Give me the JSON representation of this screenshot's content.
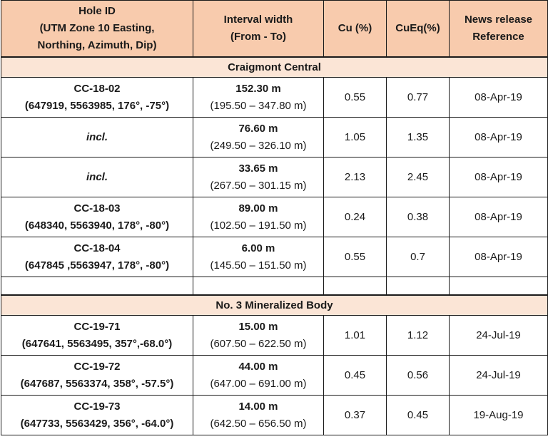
{
  "header": {
    "hole_id": [
      "Hole ID",
      "(UTM Zone 10 Easting,",
      "Northing, Azimuth, Dip)"
    ],
    "interval": [
      "Interval width",
      "(From - To)"
    ],
    "cu": "Cu (%)",
    "cueq": "CuEq(%)",
    "news": [
      "News release",
      "Reference"
    ]
  },
  "sections": [
    {
      "title": "Craigmont Central",
      "rows": [
        {
          "hole": "CC-18-02",
          "coords": "(647919, 5563985, 176°, -75°)",
          "width": "152.30 m",
          "range": "(195.50 – 347.80 m)",
          "cu": "0.55",
          "cueq": "0.77",
          "ref": "08-Apr-19"
        },
        {
          "hole": "incl.",
          "coords": "",
          "width": "76.60 m",
          "range": "(249.50 – 326.10 m)",
          "cu": "1.05",
          "cueq": "1.35",
          "ref": "08-Apr-19"
        },
        {
          "hole": "incl.",
          "coords": "",
          "width": "33.65 m",
          "range": "(267.50 – 301.15 m)",
          "cu": "2.13",
          "cueq": "2.45",
          "ref": "08-Apr-19"
        },
        {
          "hole": "CC-18-03",
          "coords": "(648340, 5563940, 178°, -80°)",
          "width": "89.00 m",
          "range": "(102.50 – 191.50 m)",
          "cu": "0.24",
          "cueq": "0.38",
          "ref": "08-Apr-19"
        },
        {
          "hole": "CC-18-04",
          "coords": "(647845 ,5563947, 178°, -80°)",
          "width": "6.00 m",
          "range": "(145.50 – 151.50 m)",
          "cu": "0.55",
          "cueq": "0.7",
          "ref": "08-Apr-19"
        }
      ]
    },
    {
      "title": "No. 3 Mineralized Body",
      "rows": [
        {
          "hole": "CC-19-71",
          "coords": "(647641, 5563495, 357°,-68.0°)",
          "width": "15.00 m",
          "range": "(607.50 – 622.50 m)",
          "cu": "1.01",
          "cueq": "1.12",
          "ref": "24-Jul-19"
        },
        {
          "hole": "CC-19-72",
          "coords": "(647687, 5563374, 358°, -57.5°)",
          "width": "44.00 m",
          "range": "(647.00 – 691.00 m)",
          "cu": "0.45",
          "cueq": "0.56",
          "ref": "24-Jul-19"
        },
        {
          "hole": "CC-19-73",
          "coords": "(647733, 5563429, 356°, -64.0°)",
          "width": "14.00 m",
          "range": "(642.50 – 656.50 m)",
          "cu": "0.37",
          "cueq": "0.45",
          "ref": "19-Aug-19"
        }
      ]
    }
  ]
}
